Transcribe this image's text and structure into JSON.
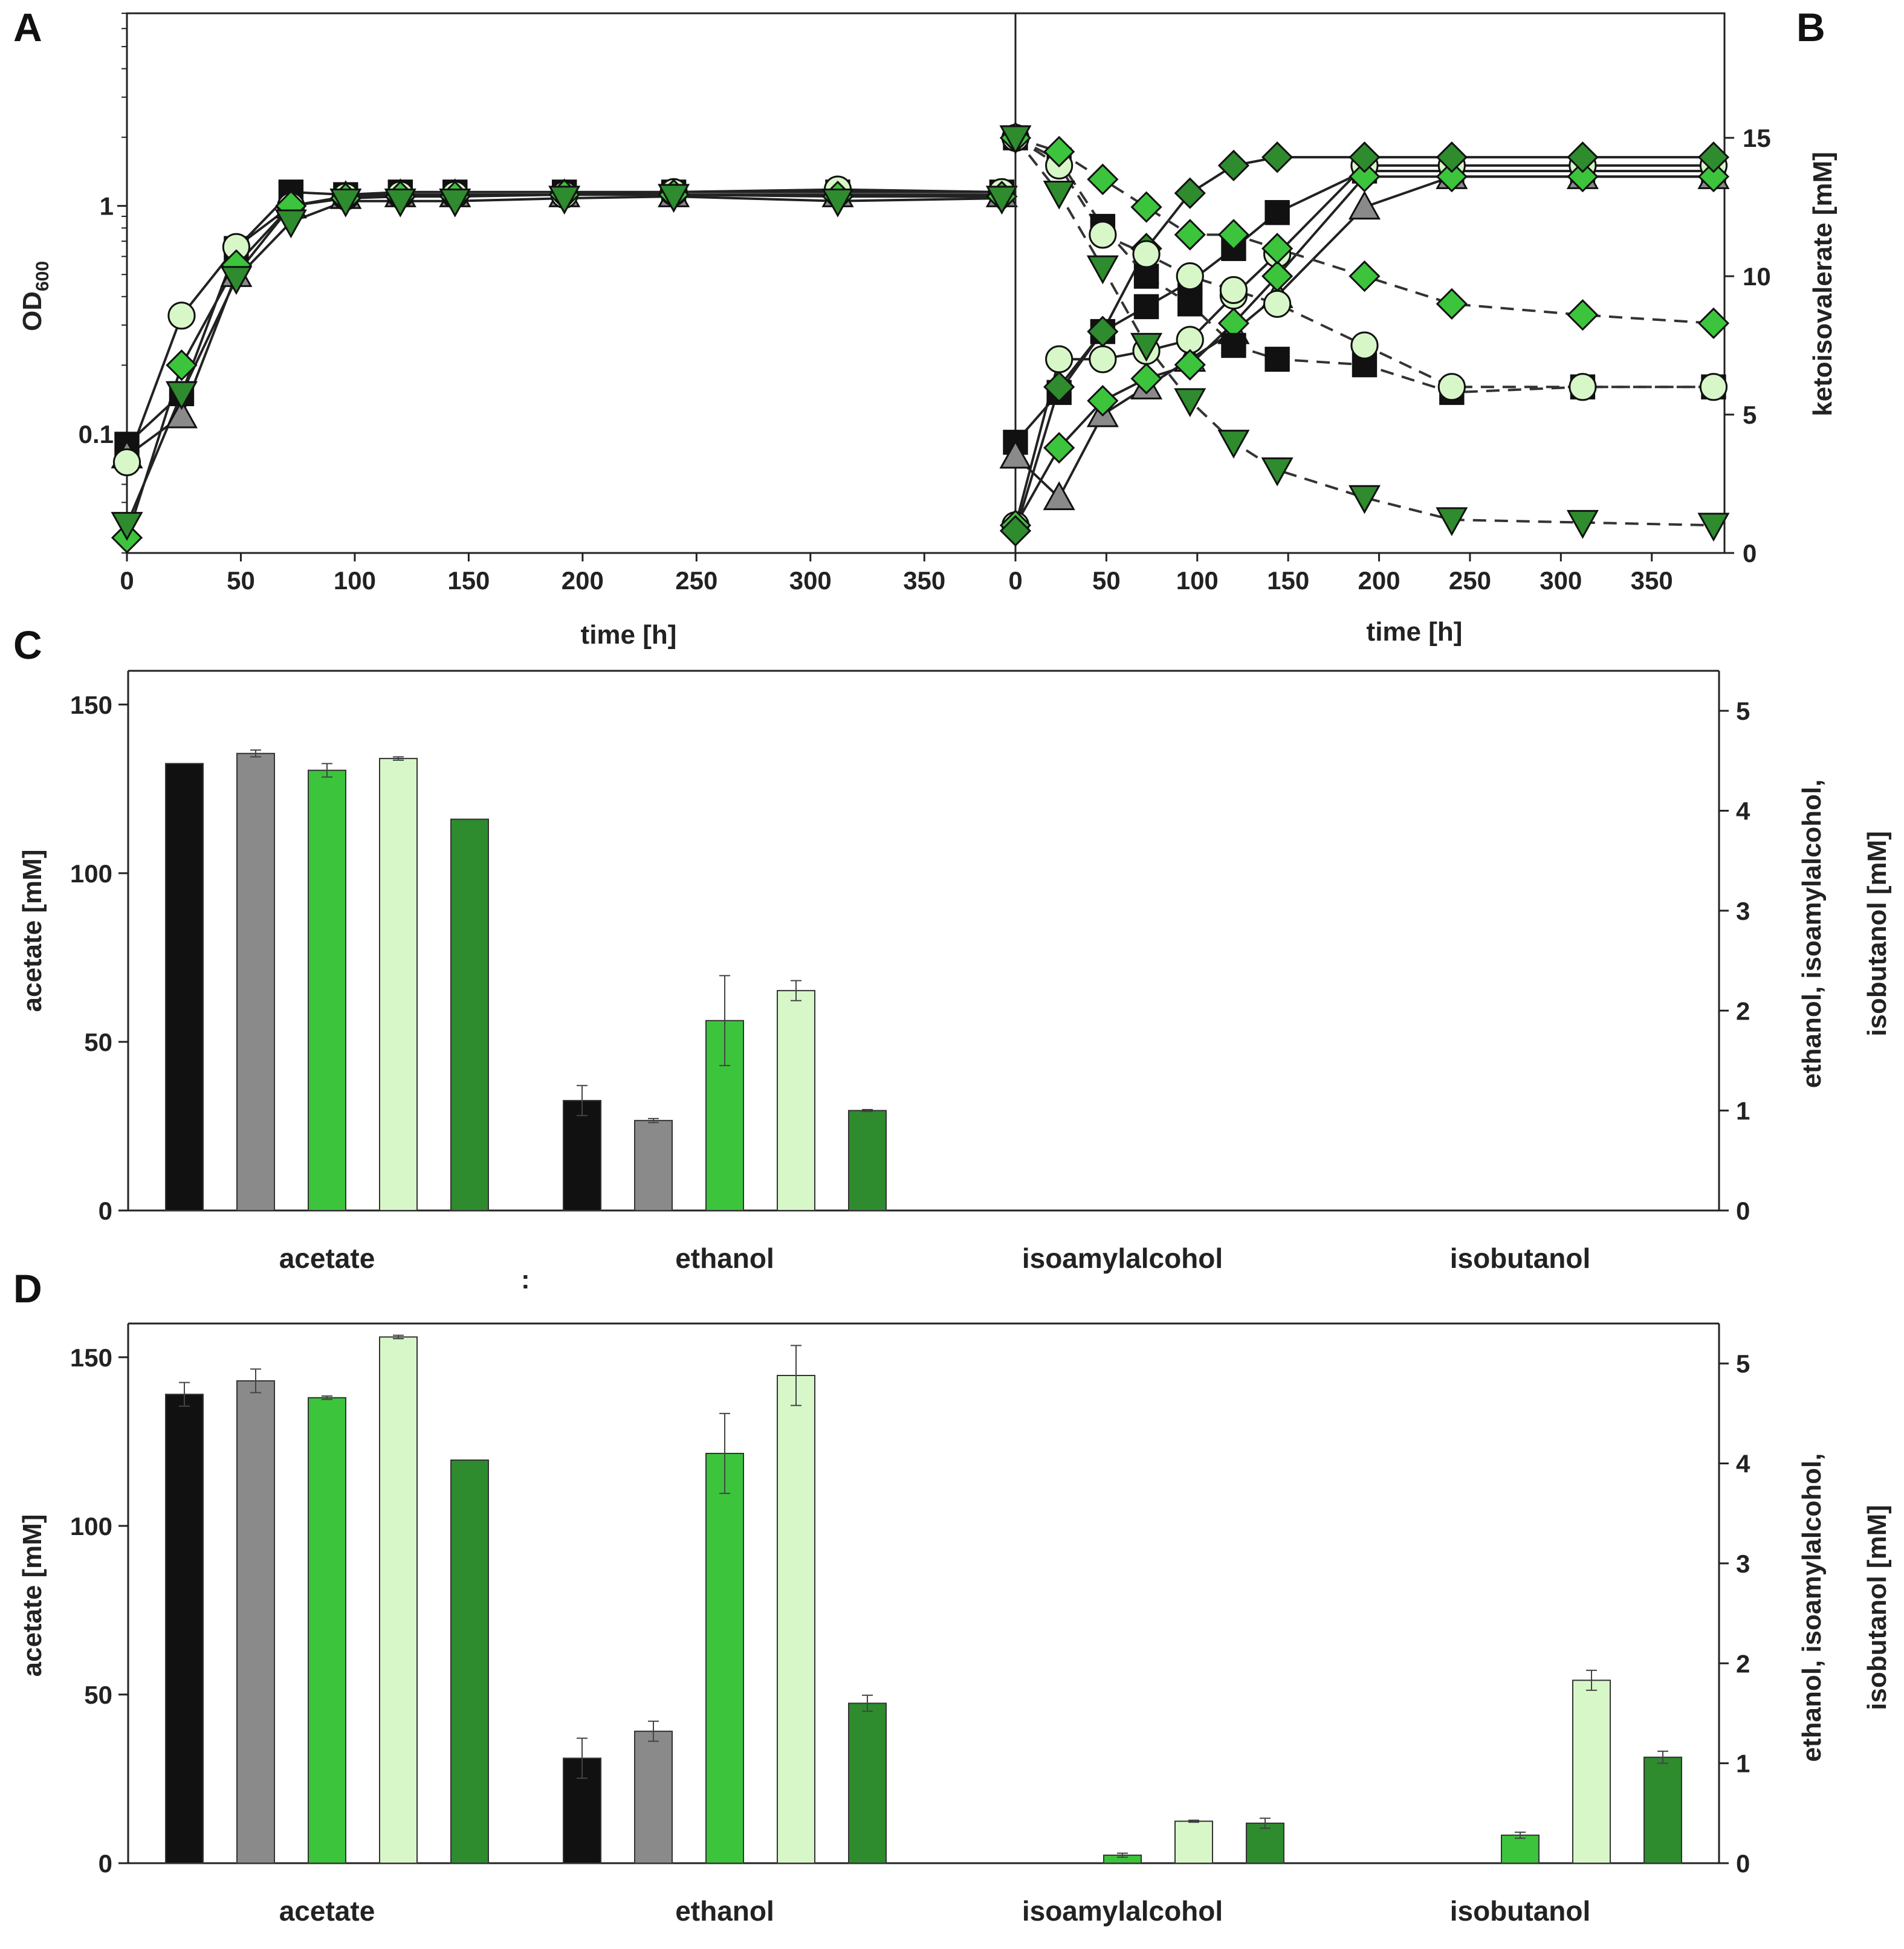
{
  "panels": [
    {
      "id": "A",
      "label": "A"
    },
    {
      "id": "B",
      "label": "B"
    },
    {
      "id": "C",
      "label": "C"
    },
    {
      "id": "D",
      "label": "D"
    }
  ],
  "stray_mark": ":",
  "colors": {
    "black": "#111111",
    "gray": "#8a8a8a",
    "green": "#3cc43c",
    "lightgreen": "#d8f7c8",
    "darkgreen": "#2e8b2e"
  },
  "chart_data": [
    {
      "panel": "A",
      "type": "line",
      "xlabel": "time [h]",
      "ylabel": "OD600",
      "ylabel_main": "OD",
      "ylabel_sub": "600",
      "yscale": "log",
      "xlim": [
        0,
        390
      ],
      "ylim": [
        0.03,
        7
      ],
      "xticks": [
        0,
        50,
        100,
        150,
        200,
        250,
        300,
        350
      ],
      "xtick_labels": [
        "0",
        "50",
        "100",
        "150",
        "200",
        "250",
        "300",
        "350"
      ],
      "yticks": [
        0.1,
        1
      ],
      "ytick_labels": [
        "0.1",
        "1"
      ],
      "x": [
        0,
        24,
        48,
        72,
        96,
        120,
        144,
        192,
        240,
        312,
        384
      ],
      "series": [
        {
          "name": "black square",
          "marker": "square",
          "color": "#111111",
          "values": [
            0.09,
            0.15,
            0.65,
            1.15,
            1.12,
            1.15,
            1.15,
            1.15,
            1.15,
            1.15,
            1.15
          ]
        },
        {
          "name": "gray triangle",
          "marker": "triangle-up",
          "color": "#8a8a8a",
          "values": [
            0.08,
            0.12,
            0.5,
            1.0,
            1.1,
            1.12,
            1.12,
            1.12,
            1.12,
            1.12,
            1.12
          ]
        },
        {
          "name": "green circle",
          "marker": "circle",
          "color": "#d8f7c8",
          "values": [
            0.075,
            0.33,
            0.66,
            1.0,
            1.1,
            1.12,
            1.12,
            1.12,
            1.15,
            1.18,
            1.15
          ]
        },
        {
          "name": "green diamond",
          "marker": "diamond",
          "color": "#3cc43c",
          "values": [
            0.035,
            0.2,
            0.55,
            1.0,
            1.08,
            1.1,
            1.1,
            1.12,
            1.12,
            1.1,
            1.1
          ]
        },
        {
          "name": "green down-triangle",
          "marker": "triangle-down",
          "color": "#2e8b2e",
          "values": [
            0.04,
            0.15,
            0.48,
            0.85,
            1.05,
            1.05,
            1.05,
            1.08,
            1.1,
            1.05,
            1.08
          ]
        }
      ]
    },
    {
      "panel": "B",
      "type": "line",
      "xlabel": "time [h]",
      "ylabel": "ketoisovalerate [mM]",
      "yaxis_side": "right",
      "xlim": [
        0,
        390
      ],
      "ylim": [
        0,
        19.5
      ],
      "xticks": [
        0,
        50,
        100,
        150,
        200,
        250,
        300,
        350
      ],
      "xtick_labels": [
        "0",
        "50",
        "100",
        "150",
        "200",
        "250",
        "300",
        "350"
      ],
      "yticks": [
        0,
        5,
        10,
        15
      ],
      "ytick_labels": [
        "0",
        "5",
        "10",
        "15"
      ],
      "x": [
        0,
        24,
        48,
        72,
        96,
        120,
        144,
        192,
        240,
        312,
        384
      ],
      "series": [
        {
          "name": "black square (OD)",
          "style": "solid",
          "marker": "square",
          "color": "#111111",
          "values": [
            4.0,
            5.8,
            8.0,
            8.9,
            9.8,
            11.0,
            12.3,
            13.8,
            13.8,
            13.8,
            13.8
          ]
        },
        {
          "name": "gray triangle (OD)",
          "style": "solid",
          "marker": "triangle-up",
          "color": "#8a8a8a",
          "values": [
            3.5,
            2.0,
            5.0,
            6.0,
            7.0,
            8.0,
            9.3,
            12.5,
            13.6,
            13.6,
            13.6
          ]
        },
        {
          "name": "green circle (OD)",
          "style": "solid",
          "marker": "circle",
          "color": "#d8f7c8",
          "values": [
            1.0,
            7.0,
            7.0,
            7.3,
            7.7,
            9.3,
            10.8,
            14.0,
            14.0,
            14.0,
            14.0
          ]
        },
        {
          "name": "green diamond (OD)",
          "style": "solid",
          "marker": "diamond",
          "color": "#3cc43c",
          "values": [
            1.0,
            3.8,
            5.5,
            6.3,
            6.8,
            8.3,
            10.0,
            13.6,
            13.6,
            13.6,
            13.6
          ]
        },
        {
          "name": "dark green diamond (OD)",
          "style": "solid",
          "marker": "diamond",
          "color": "#2e8b2e",
          "values": [
            0.8,
            6.0,
            8.0,
            11.0,
            13.0,
            14.0,
            14.3,
            14.3,
            14.3,
            14.3,
            14.3
          ]
        },
        {
          "name": "black square (KIV)",
          "style": "dashed",
          "marker": "square",
          "color": "#111111",
          "values": [
            15,
            14.2,
            11.8,
            10.0,
            9.0,
            7.5,
            7.0,
            6.8,
            5.8,
            6.0,
            6.0
          ]
        },
        {
          "name": "green circle (KIV)",
          "style": "dashed",
          "marker": "circle",
          "color": "#d8f7c8",
          "values": [
            15,
            14.0,
            11.5,
            10.8,
            10.0,
            9.5,
            9.0,
            7.5,
            6.0,
            6.0,
            6.0
          ]
        },
        {
          "name": "green diamond (KIV)",
          "style": "dashed",
          "marker": "diamond",
          "color": "#3cc43c",
          "values": [
            15,
            14.5,
            13.5,
            12.5,
            11.5,
            11.5,
            11.0,
            10.0,
            9.0,
            8.6,
            8.3
          ]
        },
        {
          "name": "green down-triangle (KIV)",
          "style": "dashed",
          "marker": "triangle-down",
          "color": "#2e8b2e",
          "values": [
            15,
            13.0,
            10.3,
            7.5,
            5.5,
            4.0,
            3.0,
            2.0,
            1.2,
            1.1,
            1.0
          ]
        }
      ]
    },
    {
      "panel": "C",
      "type": "bar",
      "ylabel_left": "acetate [mM]",
      "ylabel_right_line1": "ethanol, isoamylalcohol,",
      "ylabel_right_line2": "isobutanol [mM]",
      "categories": [
        "acetate",
        "ethanol",
        "isoamylalcohol",
        "isobutanol"
      ],
      "ylim_left": [
        0,
        160
      ],
      "ylim_right": [
        0,
        5.4
      ],
      "yticks_left": [
        0,
        50,
        100,
        150
      ],
      "ytick_labels_left": [
        "0",
        "50",
        "100",
        "150"
      ],
      "yticks_right": [
        0,
        1,
        2,
        3,
        4,
        5
      ],
      "ytick_labels_right": [
        "0",
        "1",
        "2",
        "3",
        "4",
        "5"
      ],
      "bar_colors": [
        "#111111",
        "#8a8a8a",
        "#3cc43c",
        "#d8f7c8",
        "#2e8b2e"
      ],
      "values_acetate_mM": [
        132.5,
        135.5,
        130.5,
        134,
        116
      ],
      "errors_acetate_mM": [
        0,
        1,
        2,
        0.5,
        0
      ],
      "values_right_mM": {
        "ethanol": [
          1.1,
          0.9,
          1.9,
          2.2,
          1.0
        ],
        "isoamylalcohol": [
          0,
          0,
          0,
          0,
          0
        ],
        "isobutanol": [
          0,
          0,
          0,
          0,
          0
        ]
      },
      "errors_right_mM": {
        "ethanol": [
          0.15,
          0.02,
          0.45,
          0.1,
          0.01
        ],
        "isoamylalcohol": [
          0,
          0,
          0,
          0,
          0
        ],
        "isobutanol": [
          0,
          0,
          0,
          0,
          0
        ]
      }
    },
    {
      "panel": "D",
      "type": "bar",
      "ylabel_left": "acetate [mM]",
      "ylabel_right_line1": "ethanol, isoamylalcohol,",
      "ylabel_right_line2": "isobutanol [mM]",
      "categories": [
        "acetate",
        "ethanol",
        "isoamylalcohol",
        "isobutanol"
      ],
      "ylim_left": [
        0,
        160
      ],
      "ylim_right": [
        0,
        5.4
      ],
      "yticks_left": [
        0,
        50,
        100,
        150
      ],
      "ytick_labels_left": [
        "0",
        "50",
        "100",
        "150"
      ],
      "yticks_right": [
        0,
        1,
        2,
        3,
        4,
        5
      ],
      "ytick_labels_right": [
        "0",
        "1",
        "2",
        "3",
        "4",
        "5"
      ],
      "bar_colors": [
        "#111111",
        "#8a8a8a",
        "#3cc43c",
        "#d8f7c8",
        "#2e8b2e"
      ],
      "values_acetate_mM": [
        139,
        143,
        138,
        156,
        119.5
      ],
      "errors_acetate_mM": [
        3.5,
        3.5,
        0.5,
        0.5,
        0
      ],
      "values_right_mM": {
        "ethanol": [
          1.05,
          1.32,
          4.1,
          4.88,
          1.6
        ],
        "isoamylalcohol": [
          0,
          0,
          0.08,
          0.42,
          0.4
        ],
        "isobutanol": [
          0,
          0,
          0.28,
          1.83,
          1.06
        ]
      },
      "errors_right_mM": {
        "ethanol": [
          0.2,
          0.1,
          0.4,
          0.3,
          0.08
        ],
        "isoamylalcohol": [
          0,
          0,
          0.02,
          0.01,
          0.05
        ],
        "isobutanol": [
          0,
          0,
          0.03,
          0.1,
          0.06
        ]
      }
    }
  ]
}
